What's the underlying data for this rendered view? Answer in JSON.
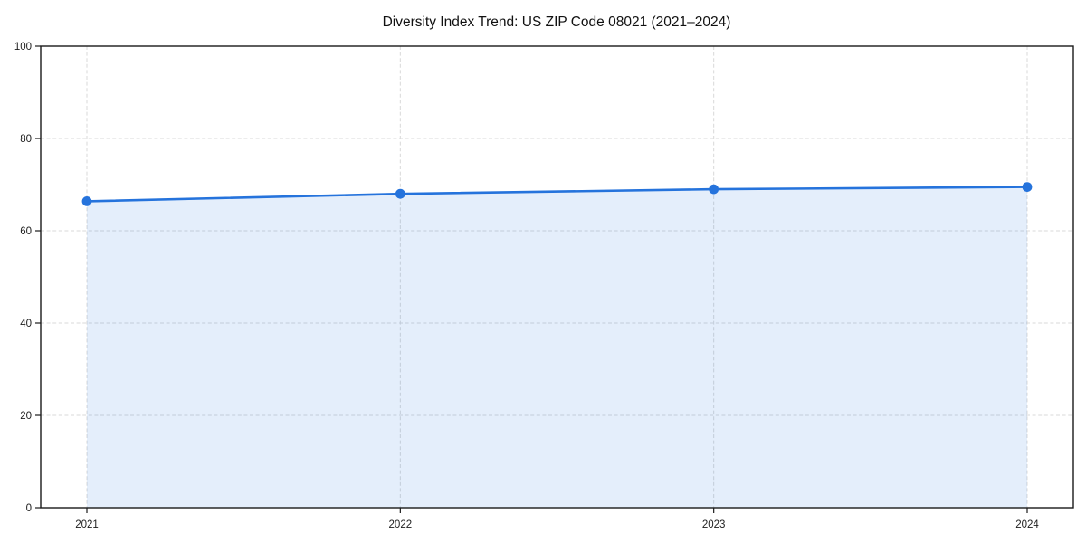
{
  "figure": {
    "background": "#ffffff"
  },
  "chart_data": {
    "type": "area",
    "title": "Diversity Index Trend: US ZIP Code 08021 (2021–2024)",
    "x": [
      2021,
      2022,
      2023,
      2024
    ],
    "values": [
      66.4,
      68.0,
      69.0,
      69.5
    ],
    "xlabel": "",
    "ylabel": "",
    "ylim": [
      0,
      100
    ],
    "yticks": [
      0,
      20,
      40,
      60,
      80,
      100
    ],
    "xtick_labels": [
      "2021",
      "2022",
      "2023",
      "2024"
    ],
    "grid": true,
    "grid_style": "dashed",
    "legend_position": "none",
    "colors": {
      "line": "#2573dc",
      "marker": "#2573dc",
      "fill": "#2573dc",
      "fill_opacity": 0.12,
      "grid": "#d9d9d9",
      "axis": "#1a1a1a",
      "text": "#1d1d1d",
      "background": "#ffffff"
    }
  }
}
